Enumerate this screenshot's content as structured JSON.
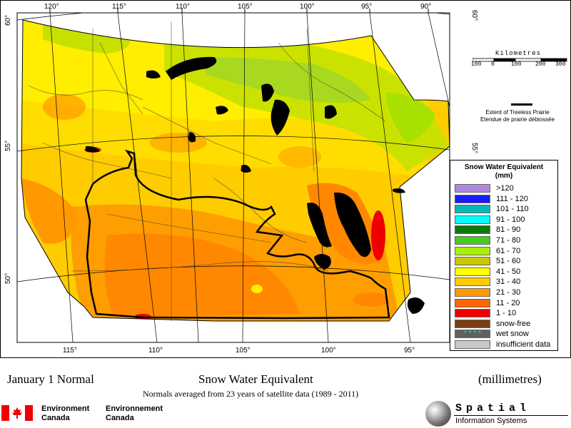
{
  "map": {
    "longitude_labels_top": [
      "120°",
      "115°",
      "110°",
      "105°",
      "100°",
      "95°",
      "90°"
    ],
    "longitude_labels_bottom": [
      "115°",
      "110°",
      "105°",
      "100°",
      "95°"
    ],
    "latitude_labels_left": [
      "60°",
      "55°",
      "50°"
    ],
    "latitude_labels_right": [
      "60°",
      "55°"
    ]
  },
  "scale": {
    "title": "Kilometres",
    "ticks": [
      "100",
      "0",
      "100",
      "200",
      "300"
    ]
  },
  "prairie_key": {
    "label_en": "Extent of Treeless Prairie",
    "label_fr": "Etendue de prairie débiossée"
  },
  "legend": {
    "title_line1": "Snow Water Equivalent",
    "title_line2": "(mm)",
    "items": [
      {
        "label": ">120",
        "color": "#b088e0"
      },
      {
        "label": "111 - 120",
        "color": "#1a1aff"
      },
      {
        "label": "101 - 110",
        "color": "#00b8b8"
      },
      {
        "label": "91 - 100",
        "color": "#00ffff"
      },
      {
        "label": "81 - 90",
        "color": "#0a7a0a"
      },
      {
        "label": "71 - 80",
        "color": "#44cc22"
      },
      {
        "label": "61 - 70",
        "color": "#a8f000"
      },
      {
        "label": "51 - 60",
        "color": "#c8c800"
      },
      {
        "label": "41 - 50",
        "color": "#ffff00"
      },
      {
        "label": "31 - 40",
        "color": "#ffcc00"
      },
      {
        "label": "21 - 30",
        "color": "#ff9900"
      },
      {
        "label": "11 - 20",
        "color": "#ff6600"
      },
      {
        "label": "1 - 10",
        "color": "#ee0000"
      },
      {
        "label": "snow-free",
        "color": "#7a3d10"
      },
      {
        "label": "wet snow",
        "color": "#606060"
      },
      {
        "label": "insufficient data",
        "color": "#c8c8c8"
      }
    ]
  },
  "footer": {
    "left_title": "January 1 Normal",
    "center_title": "Snow Water Equivalent",
    "right_title": "(millimetres)",
    "subtitle": "Normals averaged from 23 years of satellite data (1989 - 2011)",
    "agency_en_1": "Environment",
    "agency_en_2": "Canada",
    "agency_fr_1": "Environnement",
    "agency_fr_2": "Canada",
    "spatial_1": "Spatial",
    "spatial_2": "Information Systems"
  },
  "colors": {
    "red": "#ee0000",
    "white": "#ffffff",
    "lake": "#000000"
  }
}
